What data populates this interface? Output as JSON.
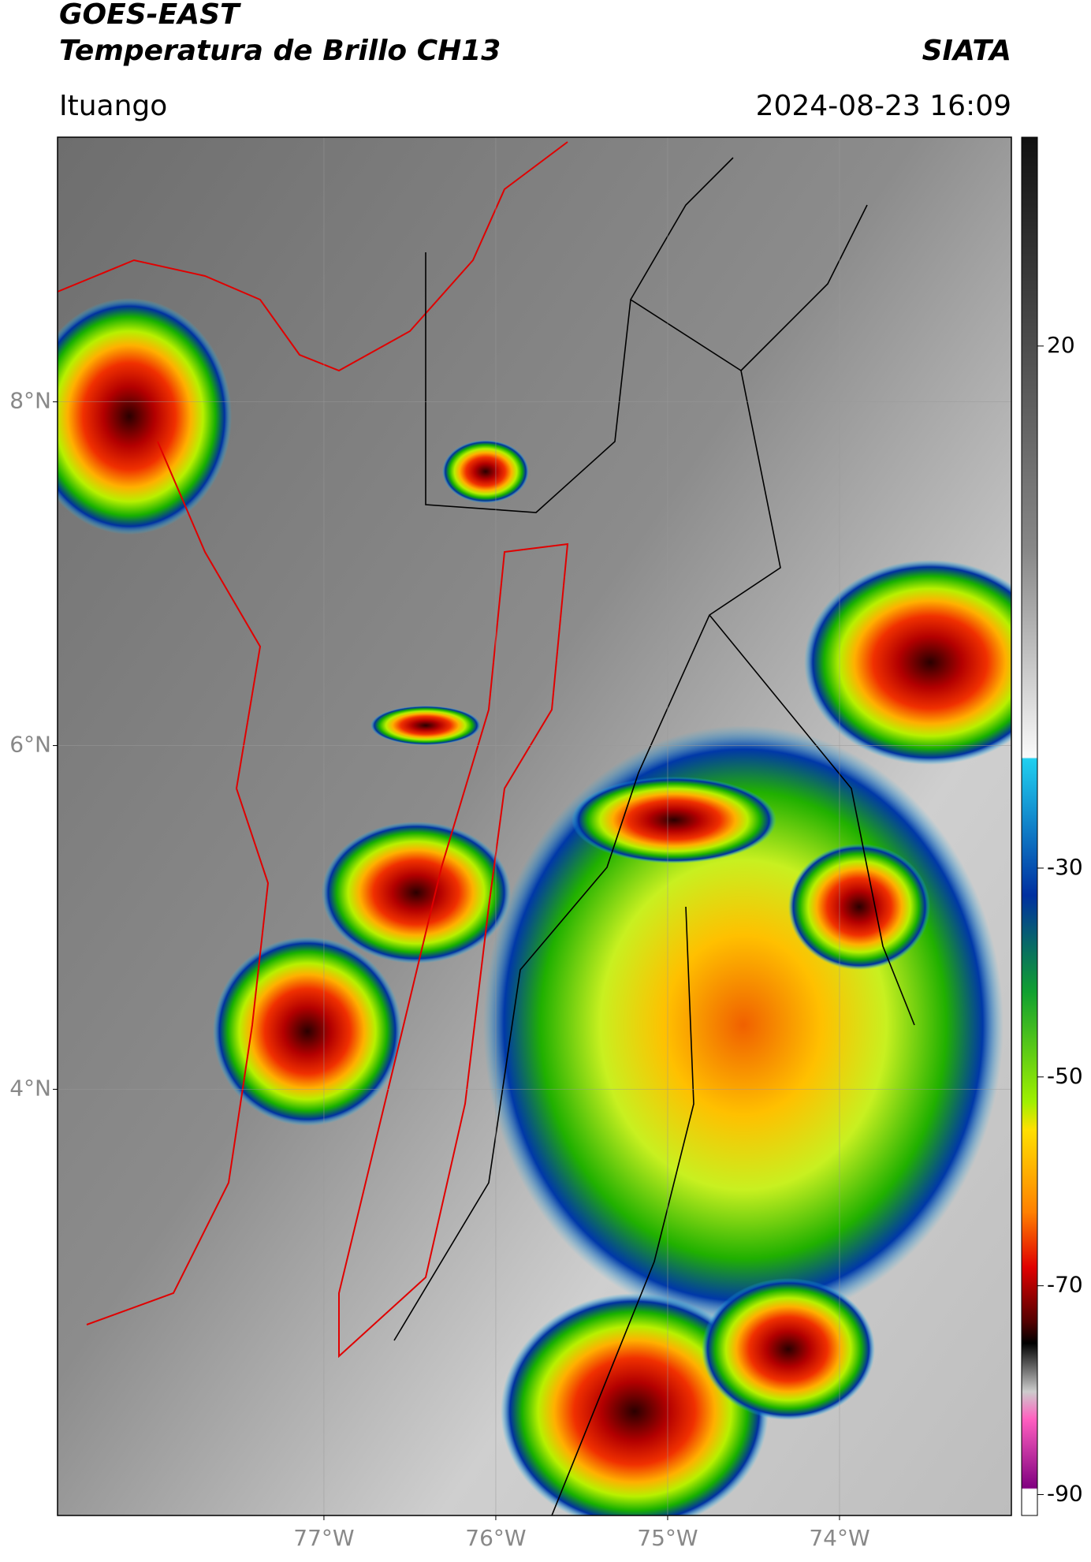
{
  "header": {
    "title": "GOES-EAST",
    "subtitle": "Temperatura de Brillo CH13",
    "brand": "SIATA",
    "location": "Ituango",
    "datetime": "2024-08-23 16:09"
  },
  "map": {
    "lat_range": [
      1.52,
      9.54
    ],
    "lon_range": [
      -78.55,
      -73.0
    ],
    "lat_ticks": [
      {
        "value": 8,
        "label": "8°N"
      },
      {
        "value": 6,
        "label": "6°N"
      },
      {
        "value": 4,
        "label": "4°N"
      }
    ],
    "lon_ticks": [
      {
        "value": -77,
        "label": "77°W"
      },
      {
        "value": -76,
        "label": "76°W"
      },
      {
        "value": -75,
        "label": "75°W"
      },
      {
        "value": -74,
        "label": "74°W"
      }
    ]
  },
  "colorbar": {
    "range": [
      -92,
      40
    ],
    "ticks": [
      20,
      -30,
      -50,
      -70,
      -90
    ]
  }
}
